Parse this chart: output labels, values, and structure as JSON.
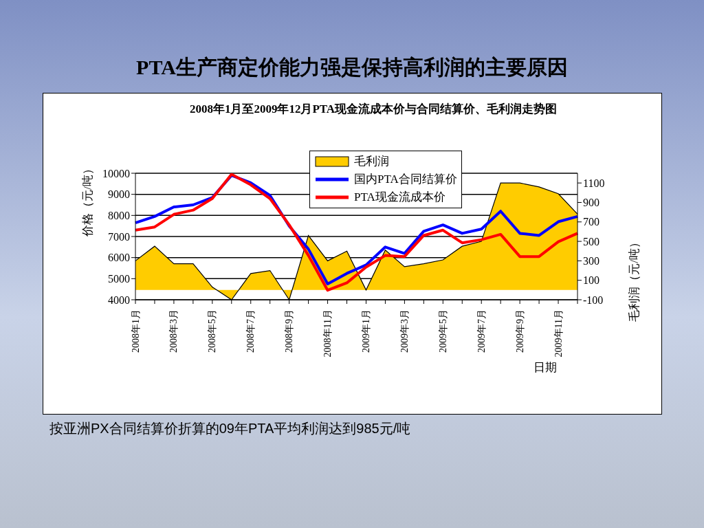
{
  "chart_data": {
    "type": "line",
    "title": "PTA生产商定价能力强是保持高利润的主要原因",
    "subtitle": "2008年1月至2009年12月PTA现金流成本价与合同结算价、毛利润走势图",
    "xlabel": "日期",
    "ylabel": "价格（元/吨）",
    "y2label": "毛利润（元/吨）",
    "annotations": [
      "按亚洲PX合同结算价折算的09年PTA平均利润达到985元/吨"
    ],
    "categories": [
      "2008年1月",
      null,
      "2008年3月",
      null,
      "2008年5月",
      null,
      "2008年7月",
      null,
      "2008年9月",
      null,
      "2008年11月",
      null,
      "2009年1月",
      null,
      "2009年3月",
      null,
      "2009年5月",
      null,
      "2009年7月",
      null,
      "2009年9月",
      null,
      "2009年11月",
      null
    ],
    "series": [
      {
        "name": "毛利润",
        "type": "area",
        "axis": "y2",
        "color": "#ffcc00",
        "values": [
          300,
          450,
          270,
          270,
          30,
          -100,
          170,
          200,
          -100,
          560,
          300,
          400,
          0,
          410,
          240,
          270,
          310,
          450,
          500,
          1100,
          1100,
          1060,
          990,
          780
        ]
      },
      {
        "name": "国内PTA合同结算价",
        "color": "#0000ff",
        "values": [
          7650,
          7950,
          8400,
          8500,
          8850,
          9900,
          9550,
          8950,
          7500,
          6400,
          4750,
          5250,
          5650,
          6500,
          6200,
          7250,
          7550,
          7150,
          7350,
          8200,
          7150,
          7050,
          7700,
          7950
        ]
      },
      {
        "name": "PTA现金流成本价",
        "color": "#ff0000",
        "values": [
          7300,
          7450,
          8050,
          8250,
          8800,
          9950,
          9450,
          8800,
          7550,
          6100,
          4450,
          4800,
          5550,
          6100,
          6050,
          7050,
          7300,
          6700,
          6850,
          7100,
          6050,
          6050,
          6750,
          7150
        ]
      }
    ],
    "ylim": [
      4000,
      10000
    ],
    "yticks": [
      4000,
      5000,
      6000,
      7000,
      8000,
      9000,
      10000
    ],
    "y2lim": [
      -100,
      1200
    ],
    "y2ticks": [
      -100,
      100,
      300,
      500,
      700,
      900,
      1100
    ],
    "grid": "y",
    "legend": "top",
    "marker": "none",
    "line_style": "solid"
  }
}
